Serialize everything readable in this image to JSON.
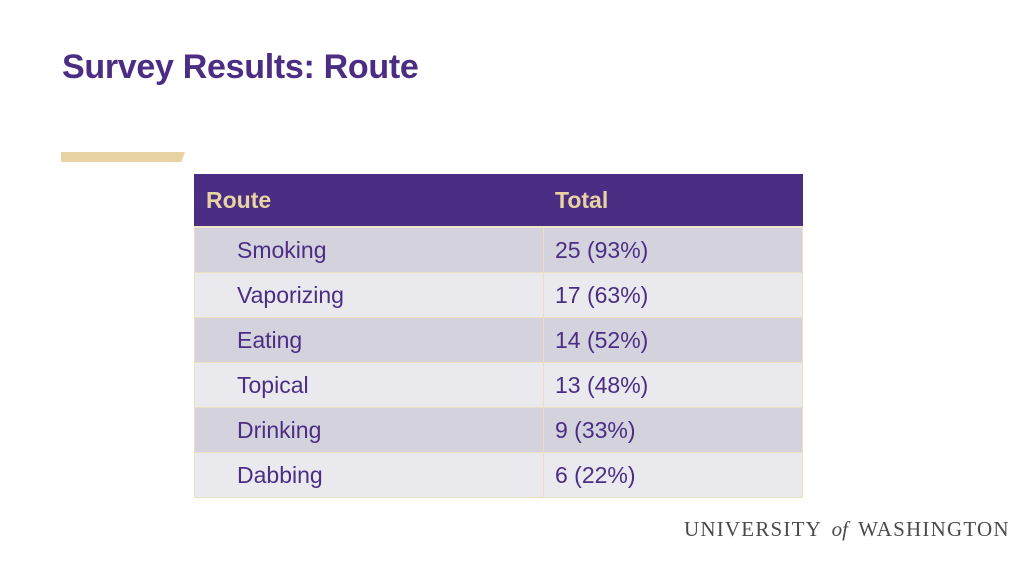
{
  "slide": {
    "title": "Survey Results: Route"
  },
  "table": {
    "headers": {
      "route": "Route",
      "total": "Total"
    },
    "rows": [
      {
        "route": "Smoking",
        "total": "25 (93%)"
      },
      {
        "route": "Vaporizing",
        "total": "17 (63%)"
      },
      {
        "route": "Eating",
        "total": "14 (52%)"
      },
      {
        "route": "Topical",
        "total": "13 (48%)"
      },
      {
        "route": "Drinking",
        "total": "9 (33%)"
      },
      {
        "route": "Dabbing",
        "total": "6 (22%)"
      }
    ]
  },
  "footer": {
    "logo_part1": "UNIVERSITY",
    "logo_part2": "of",
    "logo_part3": "WASHINGTON"
  },
  "colors": {
    "brand_purple": "#4b2e83",
    "brand_gold": "#e8d3a2"
  }
}
